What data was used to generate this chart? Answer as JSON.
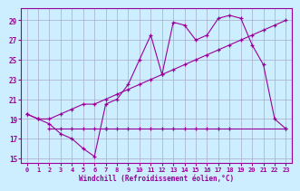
{
  "line1": {
    "x": [
      0,
      1,
      2,
      3,
      4,
      5,
      6,
      7,
      8,
      9,
      10,
      11,
      12,
      13,
      14,
      15,
      16,
      17,
      18,
      19,
      20,
      21,
      22,
      23
    ],
    "y": [
      19.5,
      19.0,
      19.0,
      19.5,
      20.0,
      20.5,
      20.5,
      21.0,
      21.5,
      22.0,
      22.5,
      23.0,
      23.5,
      24.0,
      24.5,
      25.0,
      25.5,
      26.0,
      26.5,
      27.0,
      27.5,
      28.0,
      28.5,
      29.0
    ]
  },
  "line2": {
    "x": [
      0,
      1,
      2,
      3,
      4,
      5,
      6,
      7,
      8,
      9,
      10,
      11,
      12,
      13,
      14,
      15,
      16,
      17,
      18,
      19,
      20,
      21,
      22,
      23
    ],
    "y": [
      19.5,
      19.0,
      18.5,
      17.5,
      17.0,
      16.0,
      15.2,
      20.5,
      21.0,
      22.5,
      25.0,
      27.5,
      23.5,
      28.8,
      28.5,
      27.0,
      27.5,
      29.2,
      29.5,
      29.2,
      26.5,
      24.5,
      19.0,
      18.0
    ]
  },
  "line3_seg1": {
    "x": [
      2,
      3,
      4,
      5,
      6,
      7
    ],
    "y": [
      18.0,
      18.0,
      18.0,
      18.0,
      18.0,
      18.0
    ]
  },
  "line3_seg2": {
    "x": [
      7,
      8,
      9,
      10,
      11,
      12,
      13,
      14,
      15,
      16,
      17,
      18,
      23
    ],
    "y": [
      18.0,
      18.0,
      18.0,
      18.0,
      18.0,
      18.0,
      18.0,
      18.0,
      18.0,
      18.0,
      18.0,
      18.0,
      18.0
    ]
  },
  "color": "#990099",
  "bg_color": "#cceeff",
  "grid_color": "#aaaacc",
  "xlim": [
    -0.5,
    23.5
  ],
  "ylim": [
    14.5,
    30.2
  ],
  "yticks": [
    15,
    17,
    19,
    21,
    23,
    25,
    27,
    29
  ],
  "xticks": [
    0,
    1,
    2,
    3,
    4,
    5,
    6,
    7,
    8,
    9,
    10,
    11,
    12,
    13,
    14,
    15,
    16,
    17,
    18,
    19,
    20,
    21,
    22,
    23
  ],
  "xlabel": "Windchill (Refroidissement éolien,°C)",
  "marker": "+"
}
